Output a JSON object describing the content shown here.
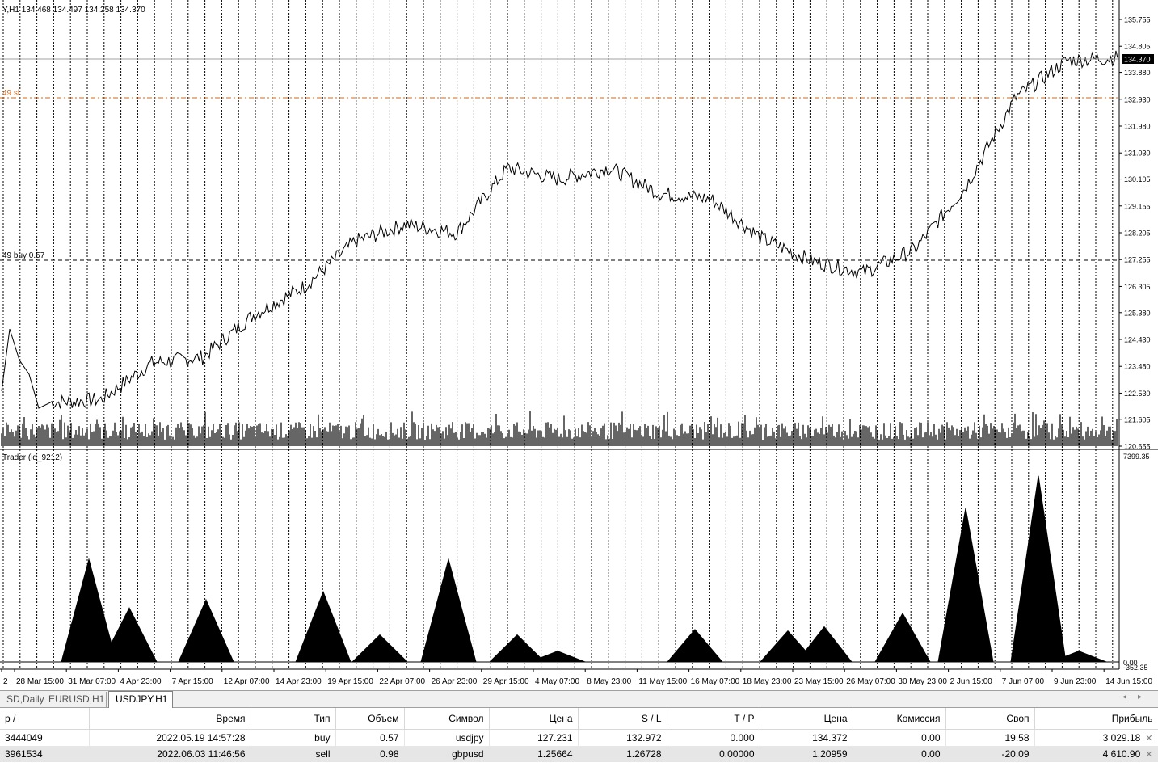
{
  "chart": {
    "header": "Y,H1  134.468 134.497 134.258 134.370",
    "sl_label": "49 sl",
    "buy_label": "49 buy 0.57",
    "indicator_label": "Trader (id_9212)",
    "current_price": "134.370",
    "price_axis": [
      "135.755",
      "134.805",
      "133.880",
      "132.930",
      "131.980",
      "131.030",
      "130.105",
      "129.155",
      "128.205",
      "127.255",
      "126.305",
      "125.380",
      "124.430",
      "123.480",
      "122.530",
      "121.605",
      "120.655"
    ],
    "indicator_axis": {
      "top": "7399.35",
      "zero": "0.00",
      "bottom": "-352.35"
    },
    "time_axis": [
      "2",
      "28 Mar 15:00",
      "31 Mar 07:00",
      "4 Apr 23:00",
      "7 Apr 15:00",
      "12 Apr 07:00",
      "14 Apr 23:00",
      "19 Apr 15:00",
      "22 Apr 07:00",
      "26 Apr 23:00",
      "29 Apr 15:00",
      "4 May 07:00",
      "8 May 23:00",
      "11 May 15:00",
      "16 May 07:00",
      "18 May 23:00",
      "23 May 15:00",
      "26 May 07:00",
      "30 May 23:00",
      "2 Jun 15:00",
      "7 Jun 07:00",
      "9 Jun 23:00",
      "14 Jun 15:00"
    ],
    "colors": {
      "line": "#000000",
      "grid": "#000000",
      "sl_line": "#d2691e",
      "buy_line": "#000000",
      "price_tag_bg": "#000000",
      "price_tag_fg": "#ffffff"
    }
  },
  "chart_data": {
    "type": "line",
    "title": "",
    "xlabel": "",
    "ylabel": "",
    "ylim": [
      120.655,
      135.755
    ],
    "x": [
      "28 Mar 15:00",
      "31 Mar 07:00",
      "4 Apr 23:00",
      "7 Apr 15:00",
      "12 Apr 07:00",
      "14 Apr 23:00",
      "19 Apr 15:00",
      "22 Apr 07:00",
      "26 Apr 23:00",
      "29 Apr 15:00",
      "4 May 07:00",
      "8 May 23:00",
      "11 May 15:00",
      "16 May 07:00",
      "18 May 23:00",
      "23 May 15:00",
      "26 May 07:00",
      "30 May 23:00",
      "2 Jun 15:00",
      "7 Jun 07:00",
      "9 Jun 23:00",
      "14 Jun 15:00"
    ],
    "series": [
      {
        "values": [
          122.2,
          122.3,
          123.6,
          123.8,
          125.3,
          126.3,
          127.9,
          128.5,
          128.2,
          130.5,
          130.1,
          130.5,
          129.6,
          129.4,
          128.0,
          127.2,
          126.8,
          127.6,
          129.8,
          133.0,
          134.3,
          134.4
        ]
      }
    ],
    "indicator": {
      "ylim": [
        -352.35,
        7399.35
      ],
      "peaks": [
        0,
        3800,
        2000,
        2300,
        2600,
        1000,
        3800,
        1000,
        400,
        0,
        1200,
        1150,
        1300,
        1800,
        5700,
        6900,
        400
      ]
    }
  },
  "tabs": [
    {
      "label": "SD,Daily"
    },
    {
      "label": "EURUSD,H1"
    },
    {
      "label": "USDJPY,H1"
    }
  ],
  "table": {
    "headers": [
      "p  /",
      "Время",
      "Тип",
      "Объем",
      "Символ",
      "Цена",
      "S / L",
      "T / P",
      "Цена",
      "Комиссия",
      "Своп",
      "Прибыль"
    ],
    "rows": [
      [
        "3444049",
        "2022.05.19 14:57:28",
        "buy",
        "0.57",
        "usdjpy",
        "127.231",
        "132.972",
        "0.000",
        "134.372",
        "0.00",
        "19.58",
        "3 029.18"
      ],
      [
        "3961534",
        "2022.06.03 11:46:56",
        "sell",
        "0.98",
        "gbpusd",
        "1.25664",
        "1.26728",
        "0.00000",
        "1.20959",
        "0.00",
        "-20.09",
        "4 610.90"
      ]
    ]
  }
}
